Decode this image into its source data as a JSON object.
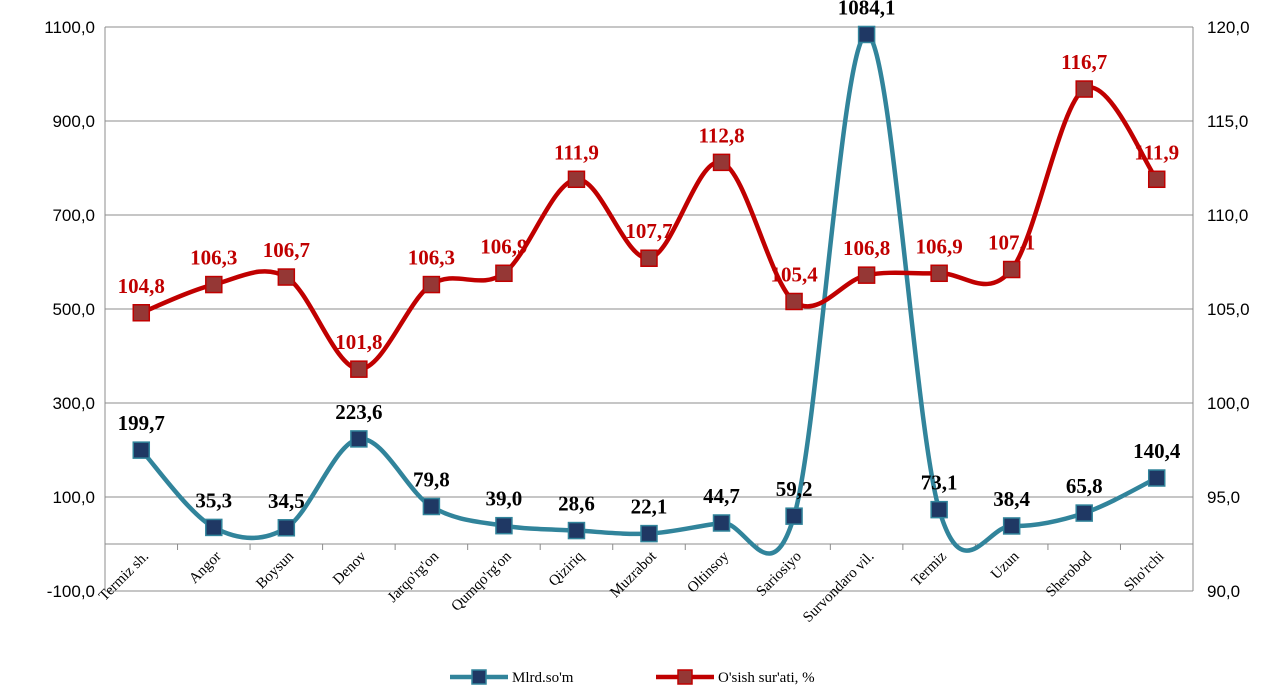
{
  "chart_data": {
    "type": "line",
    "title": "",
    "categories": [
      "Termiz sh.",
      "Angor",
      "Boysun",
      "Denov",
      "Jarqo'rg'on",
      "Qumqo'rg'on",
      "Qiziriq",
      "Muzrabot",
      "Oltinsoy",
      "Sariosiyo",
      "Survondaro vil.",
      "Termiz",
      "Uzun",
      "Sherobod",
      "Sho'rchi"
    ],
    "y_left": {
      "range": [
        -100,
        1100
      ],
      "ticks": [
        "-100,0",
        "100,0",
        "300,0",
        "500,0",
        "700,0",
        "900,0",
        "1100,0"
      ]
    },
    "y_right": {
      "range": [
        90,
        120
      ],
      "ticks": [
        "90,0",
        "95,0",
        "100,0",
        "105,0",
        "110,0",
        "115,0",
        "120,0"
      ]
    },
    "grid": true,
    "legend_position": "bottom",
    "series": [
      {
        "name": "Mlrd.so'm",
        "axis": "left",
        "color": "#31849B",
        "marker_color": "#1F3864",
        "label_color": "#000000",
        "values": [
          199.7,
          35.3,
          34.5,
          223.6,
          79.8,
          39.0,
          28.6,
          22.1,
          44.7,
          59.2,
          1084.1,
          73.1,
          38.4,
          65.8,
          140.4
        ],
        "labels": [
          "199,7",
          "35,3",
          "34,5",
          "223,6",
          "79,8",
          "39,0",
          "28,6",
          "22,1",
          "44,7",
          "59,2",
          "1084,1",
          "73,1",
          "38,4",
          "65,8",
          "140,4"
        ]
      },
      {
        "name": "O'sish sur'ati, %",
        "axis": "right",
        "color": "#C00000",
        "marker_color": "#953735",
        "label_color": "#C00000",
        "values": [
          104.8,
          106.3,
          106.7,
          101.8,
          106.3,
          106.9,
          111.9,
          107.7,
          112.8,
          105.4,
          106.8,
          106.9,
          107.1,
          116.7,
          111.9
        ],
        "labels": [
          "104,8",
          "106,3",
          "106,7",
          "101,8",
          "106,3",
          "106,9",
          "111,9",
          "107,7",
          "112,8",
          "105,4",
          "106,8",
          "106,9",
          "107,1",
          "116,7",
          "111,9"
        ]
      }
    ]
  }
}
